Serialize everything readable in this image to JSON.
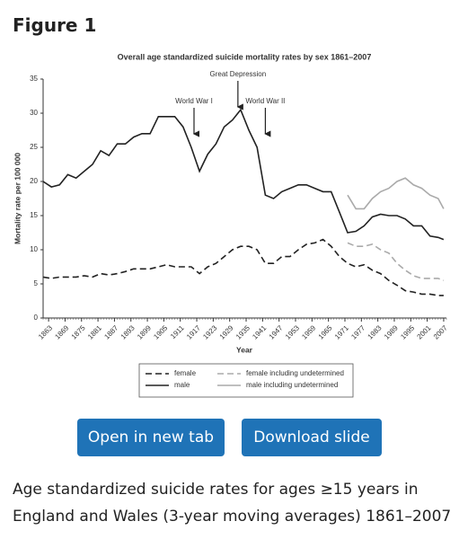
{
  "header": {
    "title": "Figure 1"
  },
  "chart_data": {
    "type": "line",
    "title": "Overall age standardized suicide mortality rates by sex 1861–2007",
    "xlabel": "Year",
    "ylabel": "Mortality rate per 100 000",
    "x": [
      1861,
      1864,
      1867,
      1870,
      1873,
      1876,
      1879,
      1882,
      1885,
      1888,
      1891,
      1894,
      1897,
      1900,
      1903,
      1906,
      1909,
      1912,
      1915,
      1918,
      1921,
      1924,
      1927,
      1930,
      1933,
      1936,
      1939,
      1942,
      1945,
      1948,
      1951,
      1954,
      1957,
      1960,
      1963,
      1966,
      1969,
      1972,
      1975,
      1978,
      1981,
      1984,
      1987,
      1990,
      1993,
      1996,
      1999,
      2002,
      2005,
      2007
    ],
    "series": [
      {
        "name": "female",
        "color": "#222222",
        "dash": "7,4",
        "values": [
          6,
          5.8,
          6,
          6,
          6,
          6.2,
          6,
          6.5,
          6.3,
          6.5,
          6.8,
          7.2,
          7.2,
          7.2,
          7.5,
          7.8,
          7.5,
          7.5,
          7.5,
          6.5,
          7.5,
          8,
          9,
          10,
          10.5,
          10.5,
          10,
          8,
          8,
          9,
          9,
          10,
          10.8,
          11,
          11.5,
          10.5,
          9,
          8,
          7.5,
          7.8,
          7,
          6.5,
          5.5,
          4.8,
          4,
          3.8,
          3.5,
          3.5,
          3.3,
          3.3
        ]
      },
      {
        "name": "male",
        "color": "#222222",
        "dash": "none",
        "values": [
          20,
          19.2,
          19.5,
          21,
          20.5,
          21.5,
          22.5,
          24.5,
          23.8,
          25.5,
          25.5,
          26.5,
          27,
          27,
          29.5,
          29.5,
          29.5,
          28,
          25,
          21.5,
          24,
          25.5,
          28,
          29,
          30.5,
          27.5,
          25,
          18,
          17.5,
          18.5,
          19,
          19.5,
          19.5,
          19,
          18.5,
          18.5,
          15.5,
          12.5,
          12.7,
          13.5,
          14.8,
          15.2,
          15,
          15,
          14.5,
          13.5,
          13.5,
          12,
          11.8,
          11.5
        ]
      },
      {
        "name": "female including undetermined",
        "color": "#aaaaaa",
        "dash": "7,4",
        "values": [
          null,
          null,
          null,
          null,
          null,
          null,
          null,
          null,
          null,
          null,
          null,
          null,
          null,
          null,
          null,
          null,
          null,
          null,
          null,
          null,
          null,
          null,
          null,
          null,
          null,
          null,
          null,
          null,
          null,
          null,
          null,
          null,
          null,
          null,
          null,
          null,
          null,
          11,
          10.5,
          10.5,
          10.8,
          10,
          9.5,
          8,
          7,
          6.2,
          5.8,
          5.8,
          5.8,
          5.5
        ]
      },
      {
        "name": "male including undetermined",
        "color": "#aaaaaa",
        "dash": "none",
        "values": [
          null,
          null,
          null,
          null,
          null,
          null,
          null,
          null,
          null,
          null,
          null,
          null,
          null,
          null,
          null,
          null,
          null,
          null,
          null,
          null,
          null,
          null,
          null,
          null,
          null,
          null,
          null,
          null,
          null,
          null,
          null,
          null,
          null,
          null,
          null,
          null,
          null,
          18,
          16,
          16,
          17.5,
          18.5,
          19,
          20,
          20.5,
          19.5,
          19,
          18,
          17.5,
          16
        ]
      }
    ],
    "xlim": [
      1861,
      2008
    ],
    "xticks": [
      1863,
      1869,
      1875,
      1881,
      1887,
      1893,
      1899,
      1905,
      1911,
      1917,
      1923,
      1929,
      1935,
      1941,
      1947,
      1953,
      1959,
      1965,
      1971,
      1977,
      1983,
      1989,
      1995,
      2001,
      2007
    ],
    "ylim": [
      0,
      35
    ],
    "yticks": [
      0,
      5,
      10,
      15,
      20,
      25,
      30,
      35
    ],
    "annotations": [
      {
        "text": "World War I",
        "x": 1916
      },
      {
        "text": "Great Depression",
        "x": 1932
      },
      {
        "text": "World War II",
        "x": 1942
      }
    ]
  },
  "buttons": [
    "Open in new tab",
    "Download slide"
  ],
  "caption": "Age standardized suicide rates for ages ≥15 years in England and Wales (3-year moving averages) 1861–2007"
}
